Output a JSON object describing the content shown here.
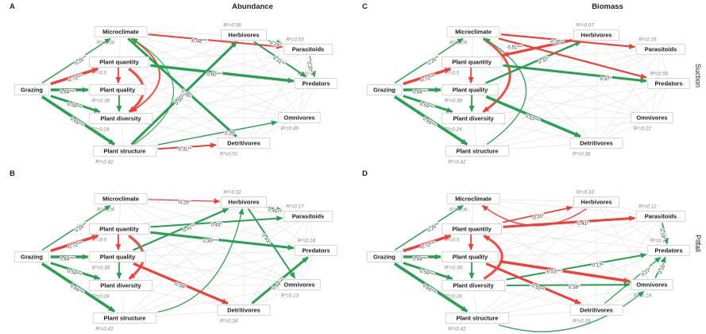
{
  "figure": {
    "col_headers": [
      "Abundance",
      "Biomass"
    ],
    "row_headers": [
      "Suction",
      "Pitfall"
    ],
    "colors": {
      "positive": "#27a050",
      "negative": "#ee4037",
      "box_border": "#c9c9c9",
      "box_fill": "#ffffff",
      "node_text": "#1a1a1a",
      "r2_text": "#828282",
      "edge_label": "#333333",
      "mesh": "#e4e4e4"
    }
  },
  "node_labels": {
    "grazing": "Grazing",
    "microclimate": "Microclimate",
    "plant_quantity": "Plant quantity",
    "plant_quality": "Plant quality",
    "plant_diversity": "Plant diversity",
    "plant_structure": "Plant structure",
    "herbivores": "Herbivores",
    "parasitoids": "Parasitoids",
    "predators": "Predators",
    "omnivores": "Omnivores",
    "detritivores": "Detritivores"
  },
  "panels": [
    {
      "letter": "A",
      "column": "Abundance",
      "row": "Suction",
      "r2": {
        "microclimate": "R²=0.06",
        "plant_quantity": "R²=0.5",
        "plant_quality": "R²=0.38",
        "plant_diversity": "R²=0.24",
        "plant_structure": "R²=0.42",
        "herbivores": "R²=0.56",
        "parasitoids": "R²=0.53",
        "predators": "R²=0.92",
        "omnivores": "R²=0.49",
        "detritivores": "R²=0.52"
      },
      "edges": [
        {
          "from": "grazing",
          "to": "microclimate",
          "sign": "pos",
          "w": 1.4,
          "label": "0.26**",
          "t": 0.55,
          "rot": true
        },
        {
          "from": "grazing",
          "to": "plant_quantity",
          "sign": "neg",
          "w": 3.4,
          "label": "-0.72***",
          "t": 0.5,
          "rot": true
        },
        {
          "from": "grazing",
          "to": "plant_quality",
          "sign": "pos",
          "w": 3.4,
          "label": "0.64***",
          "t": 0.45,
          "rot": false
        },
        {
          "from": "grazing",
          "to": "plant_diversity",
          "sign": "pos",
          "w": 3.0,
          "label": "0.50***",
          "t": 0.5,
          "rot": true
        },
        {
          "from": "grazing",
          "to": "plant_structure",
          "sign": "pos",
          "w": 3.6,
          "label": "0.65***",
          "t": 0.5,
          "rot": true
        },
        {
          "from": "plant_structure",
          "to": "herbivores",
          "sign": "pos",
          "w": 3.0,
          "label": "0.55**",
          "t": 0.45,
          "rot": true
        },
        {
          "from": "plant_quantity",
          "to": "predators",
          "sign": "pos",
          "w": 3.4,
          "label": "0.60***",
          "t": 0.45,
          "rot": false
        },
        {
          "from": "microclimate",
          "to": "parasitoids",
          "sign": "neg",
          "w": 2.0,
          "label": "-0.48***",
          "t": 0.38,
          "rot": false
        },
        {
          "from": "herbivores",
          "to": "predators",
          "sign": "pos",
          "w": 2.0,
          "label": "0.31**",
          "t": 0.5,
          "rot": true
        },
        {
          "from": "herbivores",
          "to": "parasitoids",
          "sign": "pos",
          "w": 1.2,
          "label": "0.29*",
          "t": 0.55,
          "rot": true
        },
        {
          "from": "parasitoids",
          "to": "predators",
          "sign": "pos",
          "w": 1.2,
          "label": "0.20*",
          "t": 0.5,
          "rot": true
        },
        {
          "from": "microclimate",
          "to": "detritivores",
          "sign": "pos",
          "w": 3.0,
          "label": "0.36*",
          "t": 0.55,
          "rot": true
        },
        {
          "from": "plant_structure",
          "to": "omnivores",
          "sign": "pos",
          "w": 1.4,
          "label": "0.29*",
          "t": 0.6,
          "rot": false
        },
        {
          "from": "plant_structure",
          "to": "detritivores",
          "sign": "neg",
          "w": 2.0,
          "label": "-0.31**",
          "t": 0.45,
          "rot": false
        }
      ],
      "doubles": [
        {
          "a": "plant_quantity",
          "b": "plant_quality",
          "sign": "neg"
        },
        {
          "a": "plant_quality",
          "b": "plant_diversity",
          "sign": "pos"
        }
      ],
      "arcs": [
        {
          "from": "plant_quantity",
          "to": "plant_diversity",
          "sign": "neg",
          "w": 3.2,
          "bulge": 48,
          "arrow": true
        },
        {
          "from": "microclimate",
          "to": "plant_diversity",
          "sign": "neg",
          "w": 2.0,
          "bulge": 85,
          "arrow": true
        },
        {
          "from": "plant_structure",
          "to": "microclimate",
          "sign": "pos",
          "w": 1.2,
          "bulge": -115,
          "arrow": true
        }
      ]
    },
    {
      "letter": "B",
      "column": "Abundance",
      "row": "Pitfall",
      "r2": {
        "microclimate": "R²=0.06",
        "plant_quantity": "R²=0.5",
        "plant_quality": "R²=0.38",
        "plant_diversity": "R²=0.24",
        "plant_structure": "R²=0.42",
        "herbivores": "R²=0.32",
        "parasitoids": "R²=0.17",
        "predators": "R²=0.24",
        "omnivores": "R²=0.13",
        "detritivores": "R²=0.34"
      },
      "edges": [
        {
          "from": "grazing",
          "to": "microclimate",
          "sign": "pos",
          "w": 1.4,
          "label": "0.26**",
          "t": 0.55,
          "rot": true
        },
        {
          "from": "grazing",
          "to": "plant_quantity",
          "sign": "neg",
          "w": 3.4,
          "label": "-0.72***",
          "t": 0.5,
          "rot": true
        },
        {
          "from": "grazing",
          "to": "plant_quality",
          "sign": "pos",
          "w": 3.4,
          "label": "0.64***",
          "t": 0.45,
          "rot": false
        },
        {
          "from": "grazing",
          "to": "plant_diversity",
          "sign": "pos",
          "w": 3.0,
          "label": "0.50***",
          "t": 0.5,
          "rot": true
        },
        {
          "from": "grazing",
          "to": "plant_structure",
          "sign": "pos",
          "w": 3.6,
          "label": "0.65***",
          "t": 0.5,
          "rot": true
        },
        {
          "from": "microclimate",
          "to": "herbivores",
          "sign": "neg",
          "w": 1.2,
          "label": "-0.25*",
          "t": 0.5,
          "rot": false
        },
        {
          "from": "plant_quality",
          "to": "herbivores",
          "sign": "pos",
          "w": 2.2,
          "label": "0.41**",
          "t": 0.58,
          "rot": true
        },
        {
          "from": "plant_quantity",
          "to": "parasitoids",
          "sign": "pos",
          "w": 2.0,
          "label": "0.43*",
          "t": 0.5,
          "rot": false
        },
        {
          "from": "herbivores",
          "to": "parasitoids",
          "sign": "pos",
          "w": 2.0,
          "label": "0.45**",
          "t": 0.5,
          "rot": true
        },
        {
          "from": "plant_quantity",
          "to": "predators",
          "sign": "pos",
          "w": 3.0,
          "label": "0.30***",
          "t": 0.42,
          "rot": false
        },
        {
          "from": "herbivores",
          "to": "omnivores",
          "sign": "pos",
          "w": 2.0,
          "label": "0.43*",
          "t": 0.42,
          "rot": true
        },
        {
          "from": "plant_quality",
          "to": "detritivores",
          "sign": "neg",
          "w": 3.2,
          "label": "-0.39*",
          "t": 0.5,
          "rot": true
        },
        {
          "from": "detritivores",
          "to": "predators",
          "sign": "pos",
          "w": 3.0,
          "label": "0.44***",
          "t": 0.45,
          "rot": true
        }
      ],
      "doubles": [
        {
          "a": "plant_quantity",
          "b": "plant_quality",
          "sign": "neg"
        },
        {
          "a": "plant_quality",
          "b": "plant_diversity",
          "sign": "pos"
        }
      ],
      "arcs": [
        {
          "from": "plant_quantity",
          "to": "plant_diversity",
          "sign": "neg",
          "w": 3.2,
          "bulge": 48,
          "arrow": true
        },
        {
          "from": "plant_structure",
          "to": "herbivores",
          "sign": "pos",
          "w": 1.4,
          "bulge": -70,
          "arrow": true
        }
      ]
    },
    {
      "letter": "C",
      "column": "Biomass",
      "row": "Suction",
      "r2": {
        "microclimate": "R²=0.06",
        "plant_quantity": "R²=0.5",
        "plant_quality": "R²=0.38",
        "plant_diversity": "R²=0.24",
        "plant_structure": "R²=0.42",
        "herbivores": "R²=0.07",
        "parasitoids": "R²=0.16",
        "predators": "R²=0.55",
        "omnivores": "R²=0.22",
        "detritivores": "R²=0.38"
      },
      "edges": [
        {
          "from": "grazing",
          "to": "microclimate",
          "sign": "pos",
          "w": 1.4,
          "label": "0.26**",
          "t": 0.55,
          "rot": true
        },
        {
          "from": "grazing",
          "to": "plant_quantity",
          "sign": "neg",
          "w": 3.4,
          "label": "-0.72***",
          "t": 0.5,
          "rot": true
        },
        {
          "from": "grazing",
          "to": "plant_quality",
          "sign": "pos",
          "w": 3.4,
          "label": "0.64***",
          "t": 0.45,
          "rot": false
        },
        {
          "from": "grazing",
          "to": "plant_diversity",
          "sign": "pos",
          "w": 3.0,
          "label": "0.50***",
          "t": 0.5,
          "rot": true
        },
        {
          "from": "grazing",
          "to": "plant_structure",
          "sign": "pos",
          "w": 3.6,
          "label": "0.65***",
          "t": 0.5,
          "rot": true
        },
        {
          "from": "plant_quality",
          "to": "herbivores",
          "sign": "pos",
          "w": 2.4,
          "label": "0.32*",
          "t": 0.6,
          "rot": true
        },
        {
          "from": "microclimate",
          "to": "parasitoids",
          "sign": "neg",
          "w": 2.2,
          "label": "-0.35**",
          "t": 0.42,
          "rot": false
        },
        {
          "from": "herbivores",
          "to": "plant_quantity",
          "sign": "neg",
          "w": 3.2,
          "label": "-0.51***",
          "t": 0.82,
          "rot": false
        },
        {
          "from": "plant_quantity",
          "to": "predators",
          "sign": "pos",
          "w": 3.0,
          "label": "0.37*",
          "t": 0.72,
          "rot": false
        },
        {
          "from": "microclimate",
          "to": "predators",
          "sign": "neg",
          "w": 2.2,
          "label": "",
          "t": 0.5,
          "rot": false
        },
        {
          "from": "plant_quality",
          "to": "detritivores",
          "sign": "pos",
          "w": 3.4,
          "label": "0.53***",
          "t": 0.5,
          "rot": true
        }
      ],
      "doubles": [
        {
          "a": "plant_quantity",
          "b": "plant_quality",
          "sign": "neg"
        },
        {
          "a": "plant_quality",
          "b": "plant_diversity",
          "sign": "pos"
        }
      ],
      "arcs": [
        {
          "from": "microclimate",
          "to": "plant_diversity",
          "sign": "neg",
          "w": 3.0,
          "bulge": 80,
          "arrow": true
        },
        {
          "from": "plant_structure",
          "to": "microclimate",
          "sign": "pos",
          "w": 1.4,
          "bulge": -115,
          "arrow": true
        }
      ]
    },
    {
      "letter": "D",
      "column": "Biomass",
      "row": "Pitfall",
      "r2": {
        "microclimate": "R²=0.06",
        "plant_quantity": "R²=0.5",
        "plant_quality": "R²=0.38",
        "plant_diversity": "R²=0.24",
        "plant_structure": "R²=0.42",
        "herbivores": "R²=0.33",
        "parasitoids": "R²=0.12",
        "predators": "R²=0.12",
        "omnivores": "R²=0.18",
        "detritivores": "R²=0.18"
      },
      "edges": [
        {
          "from": "grazing",
          "to": "microclimate",
          "sign": "pos",
          "w": 1.4,
          "label": "0.26**",
          "t": 0.55,
          "rot": true
        },
        {
          "from": "grazing",
          "to": "plant_quantity",
          "sign": "neg",
          "w": 3.4,
          "label": "-0.72***",
          "t": 0.5,
          "rot": true
        },
        {
          "from": "grazing",
          "to": "plant_quality",
          "sign": "pos",
          "w": 3.4,
          "label": "0.64***",
          "t": 0.45,
          "rot": false
        },
        {
          "from": "grazing",
          "to": "plant_diversity",
          "sign": "pos",
          "w": 3.0,
          "label": "0.50***",
          "t": 0.5,
          "rot": true
        },
        {
          "from": "grazing",
          "to": "plant_structure",
          "sign": "pos",
          "w": 3.6,
          "label": "0.65***",
          "t": 0.5,
          "rot": true
        },
        {
          "from": "plant_quantity",
          "to": "herbivores",
          "sign": "neg",
          "w": 1.8,
          "label": "-0.35*",
          "t": 0.5,
          "rot": true
        },
        {
          "from": "plant_quantity",
          "to": "parasitoids",
          "sign": "neg",
          "w": 3.0,
          "label": "-0.41*",
          "t": 0.6,
          "rot": false
        },
        {
          "from": "parasitoids",
          "to": "predators",
          "sign": "pos",
          "w": 1.8,
          "label": "0.18*",
          "t": 0.5,
          "rot": true
        },
        {
          "from": "plant_diversity",
          "to": "predators",
          "sign": "pos",
          "w": 2.0,
          "label": "0.17*",
          "t": 0.65,
          "rot": false
        },
        {
          "from": "plant_quality",
          "to": "omnivores",
          "sign": "neg",
          "w": 3.4,
          "label": "-0.53***",
          "t": 0.42,
          "rot": false
        },
        {
          "from": "plant_quality",
          "to": "detritivores",
          "sign": "neg",
          "w": 3.0,
          "label": "-0.50**",
          "t": 0.55,
          "rot": true
        },
        {
          "from": "plant_diversity",
          "to": "omnivores",
          "sign": "pos",
          "w": 2.0,
          "label": "0.38*",
          "t": 0.55,
          "rot": false
        },
        {
          "from": "omnivores",
          "to": "predators",
          "sign": "pos",
          "w": 1.8,
          "label": "0.16*",
          "t": 0.5,
          "rot": true
        },
        {
          "from": "detritivores",
          "to": "predators",
          "sign": "pos",
          "w": 1.2,
          "label": "0.22*",
          "t": 0.72,
          "rot": true
        }
      ],
      "doubles": [
        {
          "a": "plant_quantity",
          "b": "plant_quality",
          "sign": "neg"
        },
        {
          "a": "plant_quality",
          "b": "plant_diversity",
          "sign": "pos"
        }
      ],
      "arcs": [
        {
          "from": "herbivores",
          "to": "microclimate",
          "sign": "neg",
          "w": 1.6,
          "bulge": 55,
          "arrow": true
        },
        {
          "from": "plant_diversity",
          "to": "plant_quantity",
          "sign": "neg",
          "w": 3.2,
          "bulge": -60,
          "arrow": true
        },
        {
          "from": "plant_structure",
          "to": "omnivores",
          "sign": "pos",
          "w": 1.4,
          "bulge": -60,
          "arrow": true
        }
      ]
    }
  ]
}
